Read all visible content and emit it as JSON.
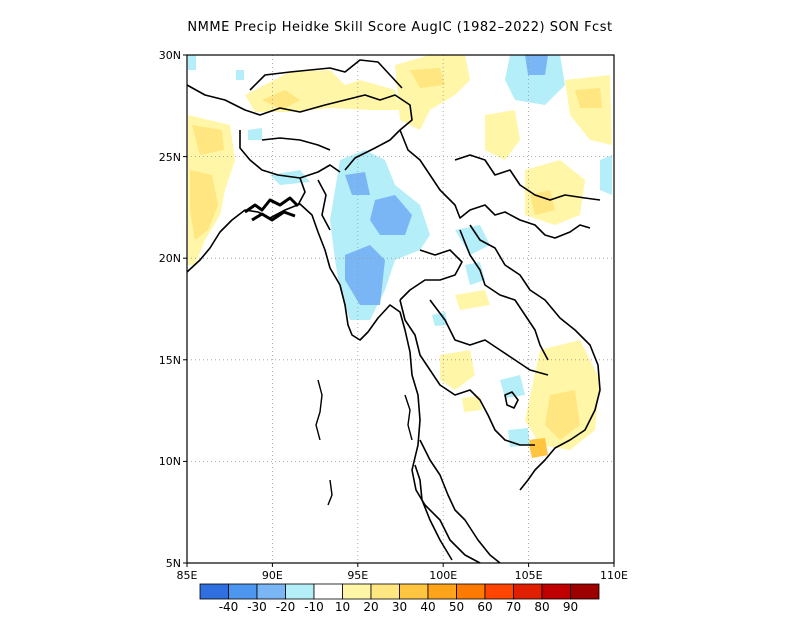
{
  "title": "NMME Precip Heidke Skill Score AugIC (1982–2022) SON Fcst",
  "axes": {
    "lon_range": [
      85,
      110
    ],
    "lat_range": [
      5,
      30
    ],
    "x_ticks": [
      "85E",
      "90E",
      "95E",
      "100E",
      "105E",
      "110E"
    ],
    "y_ticks": [
      "5N",
      "10N",
      "15N",
      "20N",
      "25N",
      "30N"
    ]
  },
  "colorbar": {
    "labels": [
      "-40",
      "-30",
      "-20",
      "-10",
      "10",
      "20",
      "30",
      "40",
      "50",
      "60",
      "70",
      "80",
      "90"
    ],
    "colors": [
      "#2f6fe0",
      "#4c96f0",
      "#7ab5f5",
      "#b4eef8",
      "#ffffff",
      "#fff6a8",
      "#ffe680",
      "#ffc440",
      "#ffa41a",
      "#ff7a00",
      "#ff4500",
      "#e01e00",
      "#c00000",
      "#9e0000"
    ]
  },
  "grid": "dotted"
}
